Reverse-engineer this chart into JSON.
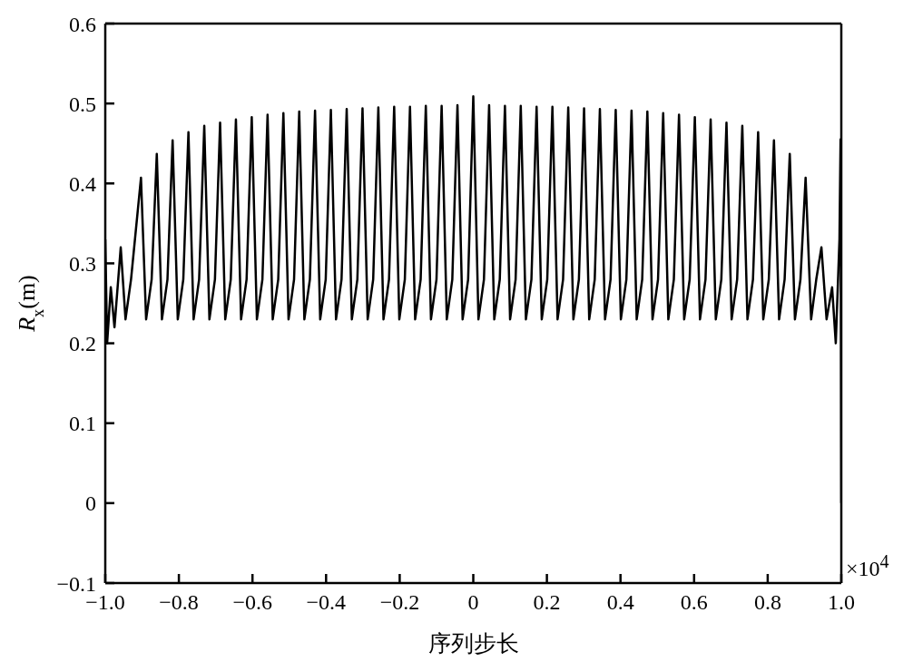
{
  "chart_data": {
    "type": "line",
    "xlabel": "序列步长",
    "ylabel": "R$_{x}$(m)",
    "annotations": [
      "×10$^{4}$"
    ],
    "x": [
      -1.0,
      -0.995,
      -0.985,
      -0.975,
      -0.958,
      -0.945,
      -0.93,
      -0.903,
      -0.889,
      -0.874,
      -0.86,
      -0.846,
      -0.831,
      -0.817,
      -0.803,
      -0.788,
      -0.774,
      -0.76,
      -0.745,
      -0.731,
      -0.717,
      -0.702,
      -0.688,
      -0.674,
      -0.659,
      -0.645,
      -0.631,
      -0.616,
      -0.602,
      -0.588,
      -0.573,
      -0.559,
      -0.545,
      -0.53,
      -0.516,
      -0.502,
      -0.487,
      -0.473,
      -0.459,
      -0.444,
      -0.43,
      -0.416,
      -0.401,
      -0.387,
      -0.373,
      -0.358,
      -0.344,
      -0.33,
      -0.315,
      -0.301,
      -0.287,
      -0.272,
      -0.258,
      -0.244,
      -0.229,
      -0.215,
      -0.201,
      -0.186,
      -0.172,
      -0.158,
      -0.143,
      -0.129,
      -0.115,
      -0.1,
      -0.086,
      -0.072,
      -0.057,
      -0.043,
      -0.029,
      -0.014,
      0,
      0.014,
      0.029,
      0.043,
      0.057,
      0.072,
      0.086,
      0.1,
      0.115,
      0.129,
      0.143,
      0.158,
      0.172,
      0.186,
      0.201,
      0.215,
      0.229,
      0.244,
      0.258,
      0.272,
      0.287,
      0.301,
      0.315,
      0.33,
      0.344,
      0.358,
      0.373,
      0.387,
      0.401,
      0.416,
      0.43,
      0.444,
      0.459,
      0.473,
      0.487,
      0.502,
      0.516,
      0.53,
      0.545,
      0.559,
      0.573,
      0.588,
      0.602,
      0.616,
      0.631,
      0.645,
      0.659,
      0.674,
      0.688,
      0.702,
      0.717,
      0.731,
      0.745,
      0.76,
      0.774,
      0.788,
      0.803,
      0.817,
      0.831,
      0.846,
      0.86,
      0.874,
      0.889,
      0.903,
      0.918,
      0.932,
      0.946,
      0.96,
      0.975,
      0.985,
      0.995,
      0.998,
      1.0
    ],
    "series": [
      {
        "color": "#000000",
        "values": [
          0.33,
          0.2,
          0.27,
          0.22,
          0.32,
          0.23,
          0.28,
          0.407,
          0.23,
          0.28,
          0.437,
          0.23,
          0.28,
          0.454,
          0.23,
          0.28,
          0.464,
          0.23,
          0.28,
          0.472,
          0.23,
          0.28,
          0.476,
          0.23,
          0.28,
          0.48,
          0.23,
          0.28,
          0.483,
          0.23,
          0.28,
          0.486,
          0.23,
          0.28,
          0.488,
          0.23,
          0.28,
          0.49,
          0.23,
          0.28,
          0.491,
          0.23,
          0.28,
          0.492,
          0.23,
          0.28,
          0.493,
          0.23,
          0.28,
          0.494,
          0.23,
          0.28,
          0.495,
          0.23,
          0.28,
          0.496,
          0.23,
          0.28,
          0.496,
          0.23,
          0.28,
          0.497,
          0.23,
          0.28,
          0.497,
          0.23,
          0.28,
          0.498,
          0.23,
          0.28,
          0.509,
          0.23,
          0.28,
          0.498,
          0.23,
          0.28,
          0.497,
          0.23,
          0.28,
          0.497,
          0.23,
          0.28,
          0.496,
          0.23,
          0.28,
          0.496,
          0.23,
          0.28,
          0.495,
          0.23,
          0.28,
          0.494,
          0.23,
          0.28,
          0.493,
          0.23,
          0.28,
          0.492,
          0.23,
          0.28,
          0.491,
          0.23,
          0.28,
          0.49,
          0.23,
          0.28,
          0.488,
          0.23,
          0.28,
          0.486,
          0.23,
          0.28,
          0.483,
          0.23,
          0.28,
          0.48,
          0.23,
          0.28,
          0.476,
          0.23,
          0.28,
          0.472,
          0.23,
          0.28,
          0.464,
          0.23,
          0.28,
          0.454,
          0.23,
          0.28,
          0.437,
          0.23,
          0.28,
          0.407,
          0.23,
          0.28,
          0.32,
          0.23,
          0.27,
          0.2,
          0.33,
          0.455,
          0
        ]
      }
    ],
    "xlim": [
      -1.0,
      1.0
    ],
    "xticks": [
      {
        "value": -1.0,
        "label": "−1.0"
      },
      {
        "value": -0.8,
        "label": "−0.8"
      },
      {
        "value": -0.6,
        "label": "−0.6"
      },
      {
        "value": -0.4,
        "label": "−0.4"
      },
      {
        "value": -0.2,
        "label": "−0.2"
      },
      0,
      {
        "value": 0.2,
        "label": "0.2"
      },
      {
        "value": 0.4,
        "label": "0.4"
      },
      {
        "value": 0.6,
        "label": "0.6"
      },
      {
        "value": 0.8,
        "label": "0.8"
      },
      {
        "value": 1.0,
        "label": "1.0"
      }
    ],
    "ylim": [
      -0.1,
      0.6
    ],
    "yticks": [
      {
        "value": -0.1,
        "label": "−0.1"
      },
      0,
      0.1,
      0.2,
      0.3,
      0.4,
      0.5,
      0.6
    ],
    "grid": false,
    "legend": false,
    "marker": "none",
    "line_style": "solid"
  }
}
